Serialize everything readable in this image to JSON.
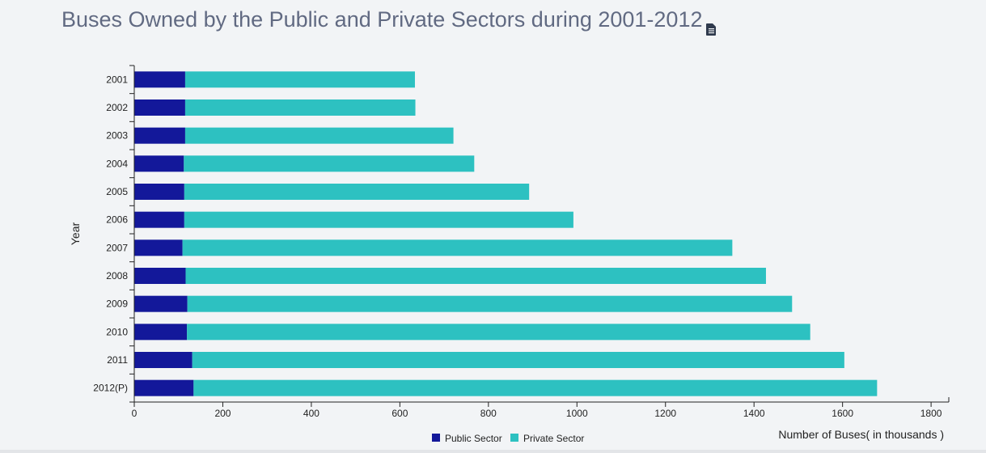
{
  "header": {
    "title": "Buses Owned by the Public and Private Sectors during 2001-2012",
    "icon": "document-icon"
  },
  "colors": {
    "public": "#13189a",
    "private": "#2dc1c1",
    "title": "#616a82",
    "axis": "#222222"
  },
  "chart_data": {
    "type": "bar",
    "orientation": "horizontal",
    "stacked": true,
    "title": "Buses Owned by the Public and Private Sectors during 2001-2012",
    "xlabel": "Number of Buses( in thousands )",
    "ylabel": "Year",
    "xlim": [
      0,
      1840
    ],
    "xticks": [
      0,
      200,
      400,
      600,
      800,
      1000,
      1200,
      1400,
      1600,
      1800
    ],
    "grid": false,
    "legend_position": "bottom-center",
    "categories": [
      "2001",
      "2002",
      "2003",
      "2004",
      "2005",
      "2006",
      "2007",
      "2008",
      "2009",
      "2010",
      "2011",
      "2012(P)"
    ],
    "series": [
      {
        "name": "Public Sector",
        "values": [
          115,
          115,
          115,
          112,
          113,
          113,
          109,
          116,
          120,
          119,
          131,
          134
        ]
      },
      {
        "name": "Private Sector",
        "values": [
          519,
          520,
          606,
          656,
          779,
          879,
          1242,
          1311,
          1366,
          1408,
          1473,
          1544
        ]
      }
    ]
  }
}
